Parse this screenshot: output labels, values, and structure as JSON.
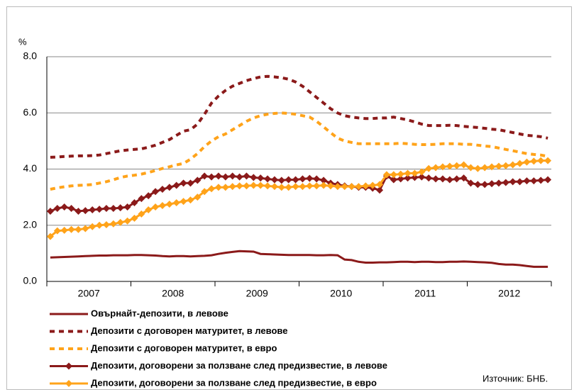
{
  "chart_data": {
    "type": "line",
    "y_unit": "%",
    "source": "Източник: БНБ.",
    "categories": [
      null,
      null,
      null,
      null,
      null,
      "2007",
      null,
      null,
      null,
      null,
      null,
      null,
      null,
      null,
      null,
      null,
      null,
      "2008",
      null,
      null,
      null,
      null,
      null,
      null,
      null,
      null,
      null,
      null,
      null,
      "2009",
      null,
      null,
      null,
      null,
      null,
      null,
      null,
      null,
      null,
      null,
      null,
      "2010",
      null,
      null,
      null,
      null,
      null,
      null,
      null,
      null,
      null,
      null,
      null,
      "2011",
      null,
      null,
      null,
      null,
      null,
      null,
      null,
      null,
      null,
      null,
      null,
      "2012",
      null,
      null,
      null,
      null,
      null,
      null
    ],
    "ylim": [
      0,
      8
    ],
    "yticks": [
      {
        "value": 0,
        "label": "0.0"
      },
      {
        "value": 2,
        "label": "2.0"
      },
      {
        "value": 4,
        "label": "4.0"
      },
      {
        "value": 6,
        "label": "6.0"
      },
      {
        "value": 8,
        "label": "8.0"
      }
    ],
    "grid": true,
    "legend": "bottom-left",
    "series": [
      {
        "name": "Овърнайт-депозити, в левове",
        "color": "#8b1a1a",
        "dash": false,
        "marker": "none",
        "values": [
          0.85,
          0.86,
          0.87,
          0.88,
          0.89,
          0.9,
          0.91,
          0.92,
          0.92,
          0.93,
          0.93,
          0.93,
          0.94,
          0.94,
          0.93,
          0.92,
          0.9,
          0.89,
          0.9,
          0.9,
          0.89,
          0.9,
          0.91,
          0.93,
          0.98,
          1.02,
          1.05,
          1.08,
          1.07,
          1.06,
          0.98,
          0.97,
          0.96,
          0.95,
          0.94,
          0.94,
          0.94,
          0.94,
          0.93,
          0.93,
          0.94,
          0.93,
          0.78,
          0.76,
          0.7,
          0.67,
          0.67,
          0.68,
          0.68,
          0.69,
          0.7,
          0.7,
          0.69,
          0.7,
          0.7,
          0.69,
          0.69,
          0.7,
          0.7,
          0.71,
          0.7,
          0.69,
          0.68,
          0.66,
          0.62,
          0.6,
          0.6,
          0.58,
          0.55,
          0.52,
          0.52,
          0.52
        ]
      },
      {
        "name": "Депозити с договорен матуритет, в левове",
        "color": "#8b1a1a",
        "dash": true,
        "marker": "none",
        "values": [
          4.42,
          4.43,
          4.45,
          4.46,
          4.47,
          4.47,
          4.48,
          4.5,
          4.55,
          4.6,
          4.65,
          4.68,
          4.7,
          4.72,
          4.78,
          4.85,
          4.95,
          5.05,
          5.2,
          5.35,
          5.4,
          5.6,
          5.95,
          6.35,
          6.6,
          6.8,
          6.95,
          7.05,
          7.15,
          7.22,
          7.28,
          7.3,
          7.28,
          7.25,
          7.2,
          7.1,
          6.95,
          6.75,
          6.55,
          6.35,
          6.15,
          6.0,
          5.9,
          5.85,
          5.82,
          5.8,
          5.8,
          5.82,
          5.82,
          5.85,
          5.8,
          5.75,
          5.68,
          5.6,
          5.55,
          5.55,
          5.55,
          5.56,
          5.55,
          5.52,
          5.5,
          5.48,
          5.45,
          5.42,
          5.4,
          5.35,
          5.3,
          5.25,
          5.2,
          5.18,
          5.15,
          5.1
        ]
      },
      {
        "name": "Депозити с договорен матуритет, в евро",
        "color": "#ffa31a",
        "dash": true,
        "marker": "none",
        "values": [
          3.28,
          3.33,
          3.37,
          3.4,
          3.42,
          3.43,
          3.45,
          3.5,
          3.55,
          3.62,
          3.7,
          3.75,
          3.78,
          3.82,
          3.88,
          3.95,
          4.02,
          4.08,
          4.15,
          4.2,
          4.35,
          4.55,
          4.8,
          5.0,
          5.15,
          5.25,
          5.4,
          5.55,
          5.7,
          5.82,
          5.9,
          5.95,
          5.98,
          6.0,
          5.98,
          5.95,
          5.9,
          5.85,
          5.7,
          5.5,
          5.3,
          5.1,
          5.0,
          4.95,
          4.9,
          4.9,
          4.9,
          4.9,
          4.9,
          4.9,
          4.92,
          4.9,
          4.88,
          4.87,
          4.87,
          4.88,
          4.9,
          4.9,
          4.9,
          4.88,
          4.88,
          4.85,
          4.82,
          4.8,
          4.75,
          4.7,
          4.65,
          4.6,
          4.55,
          4.52,
          4.5,
          4.45
        ]
      },
      {
        "name": "Депозити, договорени за ползване след предизвестие, в левове",
        "color": "#8b1a1a",
        "dash": false,
        "marker": "diamond",
        "values": [
          2.5,
          2.6,
          2.65,
          2.6,
          2.5,
          2.52,
          2.55,
          2.57,
          2.6,
          2.6,
          2.62,
          2.65,
          2.8,
          2.95,
          3.05,
          3.2,
          3.28,
          3.35,
          3.42,
          3.5,
          3.5,
          3.6,
          3.75,
          3.72,
          3.75,
          3.72,
          3.75,
          3.72,
          3.75,
          3.7,
          3.68,
          3.65,
          3.62,
          3.6,
          3.62,
          3.62,
          3.65,
          3.67,
          3.65,
          3.6,
          3.5,
          3.45,
          3.4,
          3.38,
          3.35,
          3.35,
          3.32,
          3.25,
          3.75,
          3.62,
          3.65,
          3.68,
          3.7,
          3.72,
          3.68,
          3.65,
          3.65,
          3.62,
          3.65,
          3.68,
          3.5,
          3.45,
          3.45,
          3.48,
          3.5,
          3.52,
          3.55,
          3.55,
          3.58,
          3.58,
          3.6,
          3.62
        ]
      },
      {
        "name": "Депозити, договорени за ползване след предизвестие, в евро",
        "color": "#ffa31a",
        "dash": false,
        "marker": "diamond",
        "values": [
          1.6,
          1.8,
          1.82,
          1.85,
          1.85,
          1.88,
          1.95,
          2.0,
          2.02,
          2.05,
          2.1,
          2.15,
          2.25,
          2.4,
          2.55,
          2.65,
          2.7,
          2.75,
          2.8,
          2.85,
          2.9,
          3.0,
          3.2,
          3.3,
          3.35,
          3.35,
          3.38,
          3.4,
          3.4,
          3.42,
          3.42,
          3.4,
          3.38,
          3.35,
          3.35,
          3.38,
          3.38,
          3.4,
          3.4,
          3.42,
          3.4,
          3.38,
          3.38,
          3.38,
          3.38,
          3.4,
          3.42,
          3.45,
          3.8,
          3.8,
          3.82,
          3.85,
          3.85,
          3.9,
          4.02,
          4.05,
          4.08,
          4.1,
          4.12,
          4.15,
          4.05,
          4.02,
          4.05,
          4.08,
          4.1,
          4.12,
          4.15,
          4.2,
          4.25,
          4.28,
          4.3,
          4.3
        ]
      }
    ]
  }
}
